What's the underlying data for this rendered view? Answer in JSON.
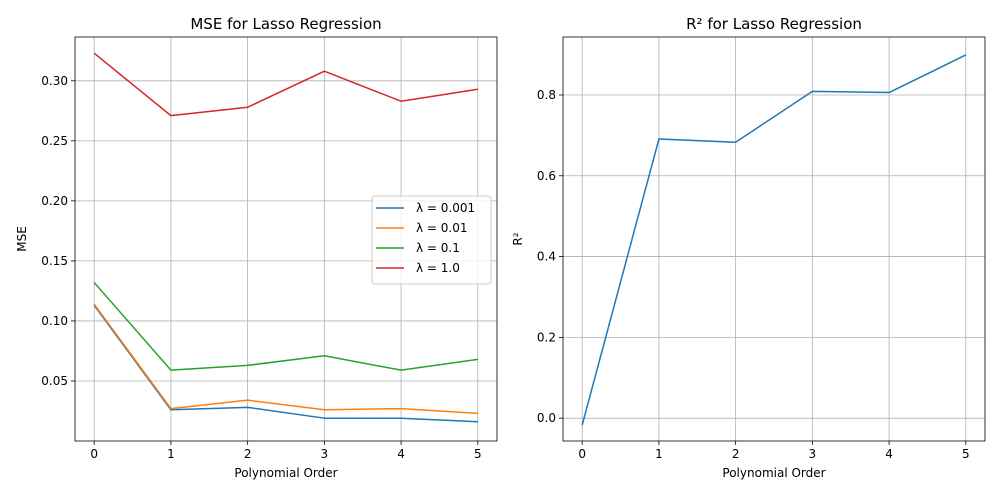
{
  "chart_data": [
    {
      "type": "line",
      "title": "MSE for Lasso Regression",
      "xlabel": "Polynomial Order",
      "ylabel": "MSE",
      "x": [
        0,
        1,
        2,
        3,
        4,
        5
      ],
      "xticks": [
        "0",
        "1",
        "2",
        "3",
        "4",
        "5"
      ],
      "yticks": [
        "0.05",
        "0.10",
        "0.15",
        "0.20",
        "0.25",
        "0.30"
      ],
      "ytick_values": [
        0.05,
        0.1,
        0.15,
        0.2,
        0.25,
        0.3
      ],
      "xlim": [
        -0.25,
        5.25
      ],
      "ylim": [
        0.0,
        0.3365
      ],
      "grid": true,
      "legend": "center-right",
      "series": [
        {
          "name": "λ = 0.001",
          "color": "#1f77b4",
          "values": [
            0.113,
            0.026,
            0.028,
            0.019,
            0.019,
            0.016
          ]
        },
        {
          "name": "λ = 0.01",
          "color": "#ff7f0e",
          "values": [
            0.114,
            0.027,
            0.034,
            0.026,
            0.027,
            0.023
          ]
        },
        {
          "name": "λ = 0.1",
          "color": "#2ca02c",
          "values": [
            0.132,
            0.059,
            0.063,
            0.071,
            0.059,
            0.068
          ]
        },
        {
          "name": "λ = 1.0",
          "color": "#d62728",
          "values": [
            0.323,
            0.271,
            0.278,
            0.308,
            0.283,
            0.293
          ]
        }
      ]
    },
    {
      "type": "line",
      "title": "R² for Lasso Regression",
      "xlabel": "Polynomial Order",
      "ylabel": "R²",
      "x": [
        0,
        1,
        2,
        3,
        4,
        5
      ],
      "xticks": [
        "0",
        "1",
        "2",
        "3",
        "4",
        "5"
      ],
      "yticks": [
        "0.0",
        "0.2",
        "0.4",
        "0.6",
        "0.8"
      ],
      "ytick_values": [
        0.0,
        0.2,
        0.4,
        0.6,
        0.8
      ],
      "xlim": [
        -0.25,
        5.25
      ],
      "ylim": [
        -0.0565,
        0.9435
      ],
      "grid": true,
      "series": [
        {
          "color": "#1f77b4",
          "values": [
            -0.017,
            0.691,
            0.683,
            0.809,
            0.806,
            0.899
          ]
        }
      ]
    }
  ]
}
